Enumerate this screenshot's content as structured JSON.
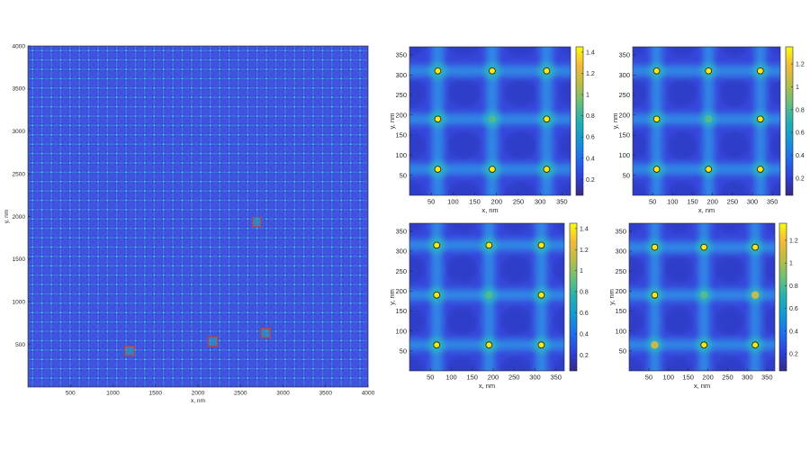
{
  "colormap": "parula",
  "colors": {
    "background_field": "#3d46e0",
    "parula_stops": [
      "#352a87",
      "#2e3fdc",
      "#1e6df0",
      "#1497d4",
      "#21b1b2",
      "#69c07b",
      "#b9bd46",
      "#f3b93a",
      "#f9fb0e"
    ],
    "roi_box": "#c0403a",
    "peak_contour": "#1a1a1a"
  },
  "chart_data": [
    {
      "id": "overview",
      "type": "heatmap",
      "title": "",
      "xlabel": "x, nm",
      "ylabel": "y, nm",
      "xlim": [
        0,
        4000
      ],
      "ylim": [
        0,
        4000
      ],
      "xticks": [
        500,
        1000,
        1500,
        2000,
        2500,
        3000,
        3500,
        4000
      ],
      "yticks": [
        500,
        1000,
        1500,
        2000,
        2500,
        3000,
        3500,
        4000
      ],
      "lattice_period_nm": 110,
      "highlighted_regions": [
        {
          "x": [
            2640,
            2740
          ],
          "y": [
            1880,
            1990
          ]
        },
        {
          "x": [
            1140,
            1250
          ],
          "y": [
            370,
            480
          ]
        },
        {
          "x": [
            2120,
            2230
          ],
          "y": [
            480,
            590
          ]
        },
        {
          "x": [
            2740,
            2850
          ],
          "y": [
            580,
            690
          ]
        }
      ]
    },
    {
      "id": "zoom-1",
      "type": "heatmap",
      "xlabel": "x, nm",
      "ylabel": "y, nm",
      "xlim": [
        0,
        370
      ],
      "ylim": [
        0,
        370
      ],
      "xticks": [
        50,
        100,
        150,
        200,
        250,
        300,
        350
      ],
      "yticks": [
        50,
        100,
        150,
        200,
        250,
        300,
        350
      ],
      "colorbar": {
        "range": [
          0.05,
          1.45
        ],
        "ticks": [
          0.2,
          0.4,
          0.6,
          0.8,
          1,
          1.2,
          1.4
        ]
      },
      "peaks": [
        {
          "x": 65,
          "y": 310,
          "v": 1.4
        },
        {
          "x": 190,
          "y": 310,
          "v": 1.4
        },
        {
          "x": 315,
          "y": 310,
          "v": 1.4
        },
        {
          "x": 65,
          "y": 190,
          "v": 1.4
        },
        {
          "x": 190,
          "y": 190,
          "v": 0.85
        },
        {
          "x": 315,
          "y": 190,
          "v": 1.4
        },
        {
          "x": 65,
          "y": 65,
          "v": 1.4
        },
        {
          "x": 190,
          "y": 65,
          "v": 1.4
        },
        {
          "x": 315,
          "y": 65,
          "v": 1.4
        }
      ]
    },
    {
      "id": "zoom-2",
      "type": "heatmap",
      "xlabel": "x, nm",
      "ylabel": "y, nm",
      "xlim": [
        0,
        370
      ],
      "ylim": [
        0,
        370
      ],
      "xticks": [
        50,
        100,
        150,
        200,
        250,
        300,
        350
      ],
      "yticks": [
        50,
        100,
        150,
        200,
        250,
        300,
        350
      ],
      "colorbar": {
        "range": [
          0.05,
          1.35
        ],
        "ticks": [
          0.2,
          0.4,
          0.6,
          0.8,
          1,
          1.2
        ]
      },
      "peaks": [
        {
          "x": 60,
          "y": 310,
          "v": 1.3
        },
        {
          "x": 190,
          "y": 310,
          "v": 1.3
        },
        {
          "x": 320,
          "y": 310,
          "v": 1.3
        },
        {
          "x": 60,
          "y": 190,
          "v": 1.3
        },
        {
          "x": 190,
          "y": 190,
          "v": 0.8
        },
        {
          "x": 320,
          "y": 190,
          "v": 1.3
        },
        {
          "x": 60,
          "y": 65,
          "v": 1.3
        },
        {
          "x": 190,
          "y": 65,
          "v": 1.3
        },
        {
          "x": 320,
          "y": 65,
          "v": 1.3
        }
      ]
    },
    {
      "id": "zoom-3",
      "type": "heatmap",
      "xlabel": "x, nm",
      "ylabel": "y, nm",
      "xlim": [
        0,
        370
      ],
      "ylim": [
        0,
        370
      ],
      "xticks": [
        50,
        100,
        150,
        200,
        250,
        300,
        350
      ],
      "yticks": [
        50,
        100,
        150,
        200,
        250,
        300,
        350
      ],
      "colorbar": {
        "range": [
          0.05,
          1.45
        ],
        "ticks": [
          0.2,
          0.4,
          0.6,
          0.8,
          1,
          1.2,
          1.4
        ]
      },
      "peaks": [
        {
          "x": 65,
          "y": 315,
          "v": 1.4
        },
        {
          "x": 190,
          "y": 315,
          "v": 1.4
        },
        {
          "x": 315,
          "y": 315,
          "v": 1.4
        },
        {
          "x": 65,
          "y": 190,
          "v": 1.4
        },
        {
          "x": 190,
          "y": 190,
          "v": 0.85
        },
        {
          "x": 315,
          "y": 190,
          "v": 1.4
        },
        {
          "x": 65,
          "y": 65,
          "v": 1.4
        },
        {
          "x": 190,
          "y": 65,
          "v": 1.4
        },
        {
          "x": 315,
          "y": 65,
          "v": 1.4
        }
      ]
    },
    {
      "id": "zoom-4",
      "type": "heatmap",
      "xlabel": "x, nm",
      "ylabel": "y, nm",
      "xlim": [
        0,
        370
      ],
      "ylim": [
        0,
        370
      ],
      "xticks": [
        50,
        100,
        150,
        200,
        250,
        300,
        350
      ],
      "yticks": [
        50,
        100,
        150,
        200,
        250,
        300,
        350
      ],
      "colorbar": {
        "range": [
          0.05,
          1.35
        ],
        "ticks": [
          0.2,
          0.4,
          0.6,
          0.8,
          1,
          1.2
        ]
      },
      "peaks": [
        {
          "x": 65,
          "y": 310,
          "v": 1.3
        },
        {
          "x": 190,
          "y": 310,
          "v": 1.3
        },
        {
          "x": 320,
          "y": 310,
          "v": 1.3
        },
        {
          "x": 65,
          "y": 190,
          "v": 1.3
        },
        {
          "x": 190,
          "y": 190,
          "v": 0.8
        },
        {
          "x": 320,
          "y": 190,
          "v": 1.1
        },
        {
          "x": 65,
          "y": 65,
          "v": 1.1
        },
        {
          "x": 190,
          "y": 65,
          "v": 1.3
        },
        {
          "x": 320,
          "y": 65,
          "v": 1.3
        }
      ]
    }
  ]
}
